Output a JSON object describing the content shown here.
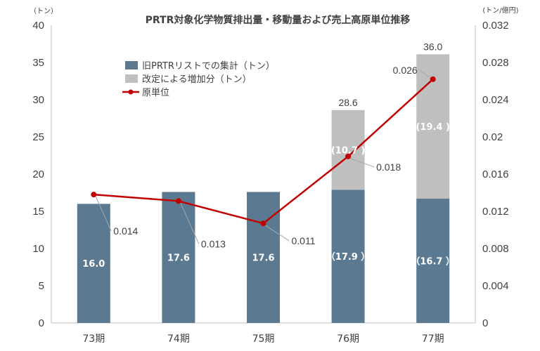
{
  "chart_data": {
    "type": "bar",
    "title": "PRTR対象化学物質排出量・移動量および売上高原単位推移",
    "y_left_unit": "（トン）",
    "y_right_unit": "(トン/億円)",
    "categories": [
      "73期",
      "74期",
      "75期",
      "76期",
      "77期"
    ],
    "ylim_left": [
      0,
      40
    ],
    "ylim_right": [
      0,
      0.032
    ],
    "yticks_left": [
      "0",
      "5",
      "10",
      "15",
      "20",
      "25",
      "30",
      "35",
      "40"
    ],
    "yticks_right": [
      "0",
      "0.004",
      "0.008",
      "0.012",
      "0.016",
      "0.02",
      "0.024",
      "0.028",
      "0.032"
    ],
    "series": [
      {
        "name": "旧PRTRリストでの集計（トン）",
        "kind": "bar",
        "color": "#5b7a91",
        "values": [
          16.0,
          17.6,
          17.6,
          17.9,
          16.7
        ],
        "labels": [
          "16.0",
          "17.6",
          "17.6",
          "（17.9 ）",
          "（16.7 ）"
        ]
      },
      {
        "name": "改定による増加分（トン）",
        "kind": "bar",
        "color": "#bfbfbf",
        "values": [
          0,
          0,
          0,
          10.7,
          19.4
        ],
        "labels": [
          "",
          "",
          "",
          "(10.7 )",
          "(19.4 )"
        ]
      },
      {
        "name": "原単位",
        "kind": "line",
        "axis": "right",
        "color": "#c00000",
        "values": [
          0.0138,
          0.0131,
          0.0107,
          0.0179,
          0.0262
        ],
        "labels": [
          "0.014",
          "0.013",
          "0.011",
          "0.018",
          "0.026"
        ]
      }
    ],
    "totals": [
      "",
      "",
      "",
      "28.6",
      "36.0"
    ],
    "grid": false,
    "legend": "top-left"
  }
}
